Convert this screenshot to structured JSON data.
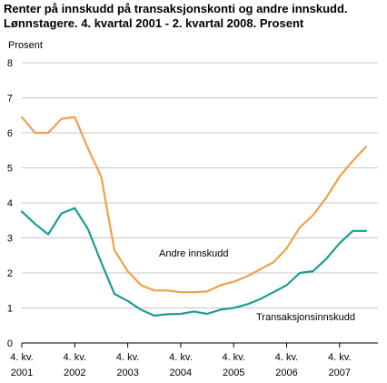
{
  "title_line1": "Renter på innskudd på transaksjonskonti og andre innskudd.",
  "title_line2": "Lønnstagere. 4. kvartal 2001 - 2. kvartal 2008. Prosent",
  "chart_data": {
    "type": "line",
    "ylabel": "Prosent",
    "ylim": [
      0,
      8
    ],
    "yticks": [
      0,
      1,
      2,
      3,
      4,
      5,
      6,
      7,
      8
    ],
    "grid": true,
    "xtick_labels": [
      {
        "line1": "4. kv.",
        "line2": "2001"
      },
      {
        "line1": "4. kv.",
        "line2": "2002"
      },
      {
        "line1": "4. kv.",
        "line2": "2003"
      },
      {
        "line1": "4. kv.",
        "line2": "2004"
      },
      {
        "line1": "4. kv.",
        "line2": "2005"
      },
      {
        "line1": "4. kv.",
        "line2": "2006"
      },
      {
        "line1": "4. kv.",
        "line2": "2007"
      }
    ],
    "series": [
      {
        "name": "Andre innskudd",
        "color": "#f0a04b",
        "values": [
          6.45,
          6.0,
          6.0,
          6.4,
          6.45,
          5.55,
          4.75,
          2.65,
          2.05,
          1.65,
          1.5,
          1.5,
          1.45,
          1.45,
          1.47,
          1.65,
          1.75,
          1.9,
          2.1,
          2.3,
          2.7,
          3.3,
          3.65,
          4.15,
          4.75,
          5.2,
          5.6
        ]
      },
      {
        "name": "Transaksjonsinnskudd",
        "color": "#1a9d94",
        "values": [
          3.75,
          3.4,
          3.1,
          3.7,
          3.85,
          3.25,
          2.3,
          1.4,
          1.2,
          0.95,
          0.78,
          0.82,
          0.83,
          0.9,
          0.83,
          0.95,
          1.0,
          1.1,
          1.25,
          1.45,
          1.65,
          2.0,
          2.05,
          2.4,
          2.85,
          3.2,
          3.2
        ]
      }
    ]
  }
}
